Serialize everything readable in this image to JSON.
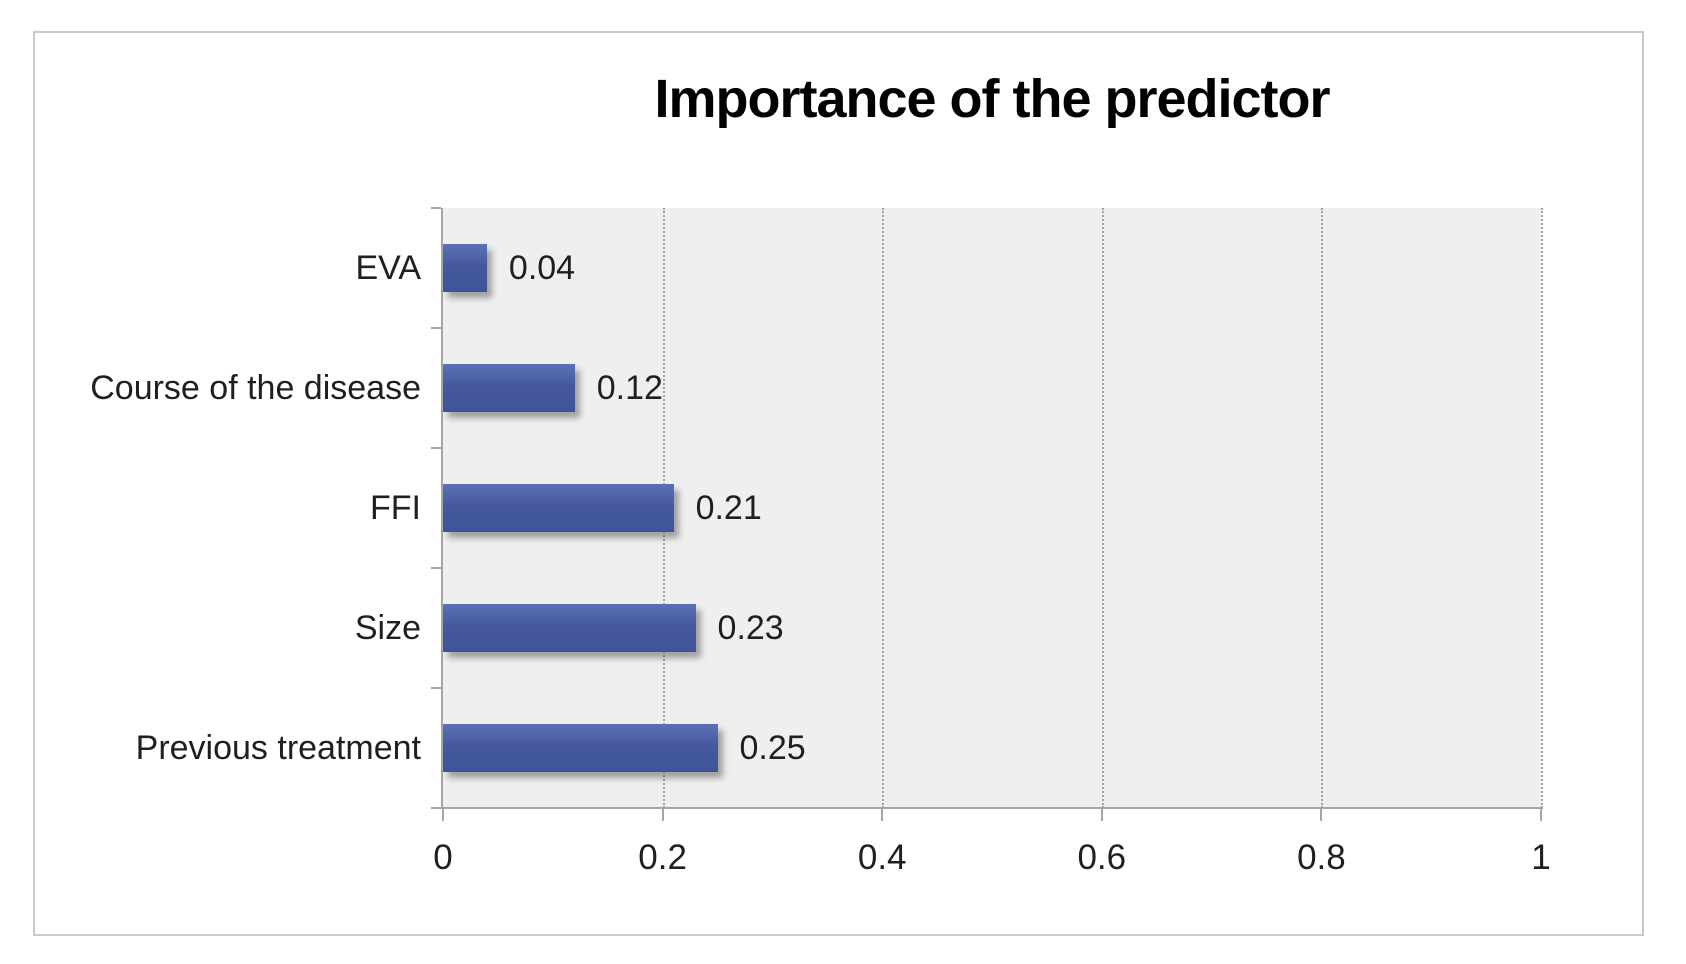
{
  "chart_data": {
    "type": "bar",
    "orientation": "horizontal",
    "title": "Importance of the predictor",
    "categories": [
      "EVA",
      "Course of the disease",
      "FFI",
      "Size",
      "Previous treatment"
    ],
    "values": [
      0.04,
      0.12,
      0.21,
      0.23,
      0.25
    ],
    "data_labels": [
      "0.04",
      "0.12",
      "0.21",
      "0.23",
      "0.25"
    ],
    "x_axis": {
      "min": 0,
      "max": 1,
      "tick_values": [
        0,
        0.2,
        0.4,
        0.6,
        0.8,
        1
      ],
      "tick_labels": [
        "0",
        "0.2",
        "0.4",
        "0.6",
        "0.8",
        "1"
      ]
    },
    "legend": "none",
    "grid": {
      "vertical": true,
      "style": "dotted"
    },
    "colors": {
      "bar_top": "#5d72b6",
      "bar_mid": "#46599f",
      "bar_bottom": "#3f5398",
      "plot_background": "#efefef",
      "axis_line": "#a6a6a6",
      "gridline": "#a3a3a3",
      "text": "#1f1f1f",
      "frame_border": "#c9c9c9"
    }
  }
}
